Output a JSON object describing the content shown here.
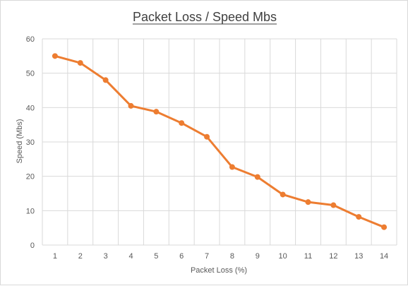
{
  "chart_data": {
    "type": "line",
    "title": "Packet Loss / Speed Mbs",
    "xlabel": "Packet Loss (%)",
    "ylabel": "Speed (Mbs)",
    "categories": [
      "1",
      "2",
      "3",
      "4",
      "5",
      "6",
      "7",
      "8",
      "9",
      "10",
      "11",
      "12",
      "13",
      "14"
    ],
    "series": [
      {
        "values": [
          55,
          53,
          48,
          40.5,
          38.8,
          35.5,
          31.5,
          22.7,
          19.8,
          14.7,
          12.5,
          11.6,
          8.2,
          5.2
        ]
      }
    ],
    "ylim": [
      0,
      60
    ],
    "yticks": [
      "0",
      "10",
      "20",
      "30",
      "40",
      "50",
      "60"
    ],
    "grid": true,
    "colors": {
      "series": "#ED7D31",
      "grid": "#d9d9d9"
    }
  }
}
